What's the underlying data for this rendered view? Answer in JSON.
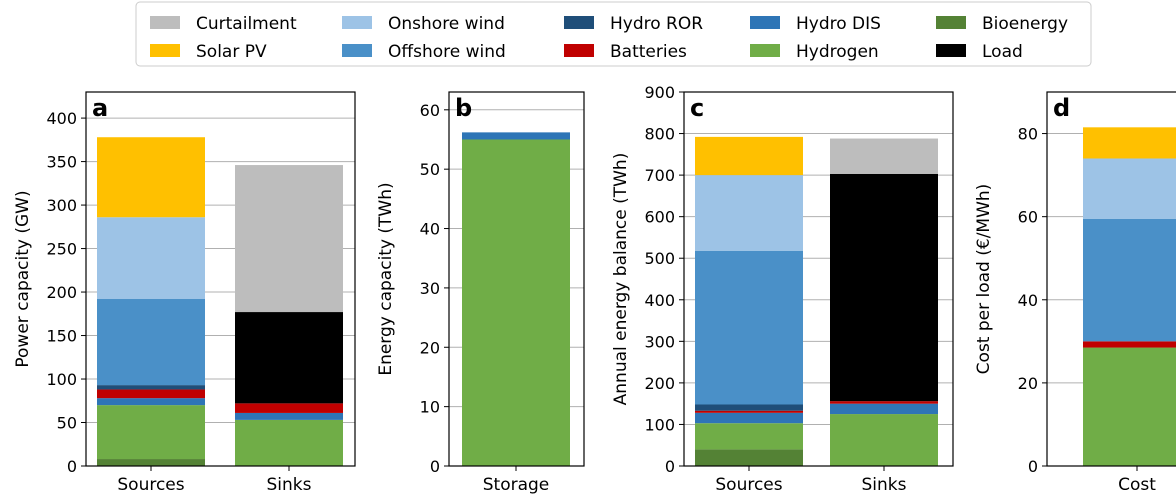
{
  "colors": {
    "Curtailment": "#bdbdbd",
    "Solar PV": "#ffc000",
    "Onshore wind": "#9dc3e6",
    "Offshore wind": "#4a90c8",
    "Hydro ROR": "#1f4e79",
    "Batteries": "#c00000",
    "Hydro DIS": "#2e75b6",
    "Hydrogen": "#70ad47",
    "Bioenergy": "#548235",
    "Load": "#000000"
  },
  "legend": {
    "placement": "top-center",
    "entries": [
      "Curtailment",
      "Solar PV",
      "Onshore wind",
      "Offshore wind",
      "Hydro ROR",
      "Batteries",
      "Hydro DIS",
      "Hydrogen",
      "Bioenergy",
      "Load"
    ]
  },
  "chart_data": [
    {
      "panel": "a",
      "type": "bar",
      "stacked": true,
      "ylabel": "Power capacity (GW)",
      "ylim": [
        0,
        430
      ],
      "yticks": [
        0,
        50,
        100,
        150,
        200,
        250,
        300,
        350,
        400
      ],
      "categories": [
        "Sources",
        "Sinks"
      ],
      "grid": "y",
      "series": [
        {
          "name": "Bioenergy",
          "values": [
            8,
            0
          ]
        },
        {
          "name": "Hydrogen",
          "values": [
            62,
            53
          ]
        },
        {
          "name": "Hydro DIS",
          "values": [
            8,
            8
          ]
        },
        {
          "name": "Batteries",
          "values": [
            10,
            11
          ]
        },
        {
          "name": "Hydro ROR",
          "values": [
            5,
            0
          ]
        },
        {
          "name": "Offshore wind",
          "values": [
            99,
            0
          ]
        },
        {
          "name": "Onshore wind",
          "values": [
            94,
            0
          ]
        },
        {
          "name": "Solar PV",
          "values": [
            92,
            0
          ]
        },
        {
          "name": "Load",
          "values": [
            0,
            105
          ]
        },
        {
          "name": "Curtailment",
          "values": [
            0,
            169
          ]
        }
      ]
    },
    {
      "panel": "b",
      "type": "bar",
      "stacked": true,
      "ylabel": "Energy capacity (TWh)",
      "ylim": [
        0,
        63
      ],
      "yticks": [
        0,
        10,
        20,
        30,
        40,
        50,
        60
      ],
      "categories": [
        "Storage"
      ],
      "grid": "y",
      "series": [
        {
          "name": "Hydrogen",
          "values": [
            55
          ]
        },
        {
          "name": "Hydro DIS",
          "values": [
            1.2
          ]
        }
      ]
    },
    {
      "panel": "c",
      "type": "bar",
      "stacked": true,
      "ylabel": "Annual energy balance (TWh)",
      "ylim": [
        0,
        900
      ],
      "yticks": [
        0,
        100,
        200,
        300,
        400,
        500,
        600,
        700,
        800,
        900
      ],
      "categories": [
        "Sources",
        "Sinks"
      ],
      "grid": "y",
      "series": [
        {
          "name": "Bioenergy",
          "values": [
            40,
            0
          ]
        },
        {
          "name": "Hydrogen",
          "values": [
            63,
            125
          ]
        },
        {
          "name": "Hydro DIS",
          "values": [
            25,
            25
          ]
        },
        {
          "name": "Batteries",
          "values": [
            5,
            6
          ]
        },
        {
          "name": "Hydro ROR",
          "values": [
            15,
            0
          ]
        },
        {
          "name": "Offshore wind",
          "values": [
            370,
            0
          ]
        },
        {
          "name": "Onshore wind",
          "values": [
            182,
            0
          ]
        },
        {
          "name": "Solar PV",
          "values": [
            92,
            0
          ]
        },
        {
          "name": "Load",
          "values": [
            0,
            547
          ]
        },
        {
          "name": "Curtailment",
          "values": [
            0,
            85
          ]
        }
      ]
    },
    {
      "panel": "d",
      "type": "bar",
      "stacked": true,
      "ylabel": "Cost per load (€/MWh)",
      "ylim": [
        0,
        90
      ],
      "yticks": [
        0,
        20,
        40,
        60,
        80
      ],
      "categories": [
        "Cost"
      ],
      "grid": "y",
      "series": [
        {
          "name": "Hydrogen",
          "values": [
            28.5
          ]
        },
        {
          "name": "Batteries",
          "values": [
            1.5
          ]
        },
        {
          "name": "Offshore wind",
          "values": [
            29.5
          ]
        },
        {
          "name": "Onshore wind",
          "values": [
            14.5
          ]
        },
        {
          "name": "Solar PV",
          "values": [
            7.5
          ]
        }
      ]
    }
  ]
}
